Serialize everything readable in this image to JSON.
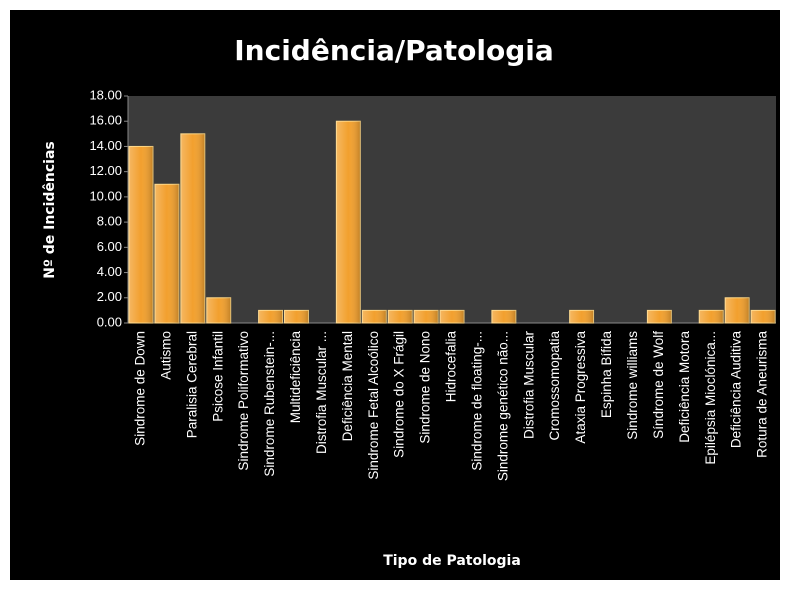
{
  "chart_data": {
    "type": "bar",
    "title": "Incidência/Patologia",
    "xlabel": "Tipo de Patologia",
    "ylabel": "Nº de Incidências",
    "categories": [
      "Sindrome de Down",
      "Autismo",
      "Paralisia Cerebral",
      "Psicose Infantil",
      "Sindrome Poliformativo",
      "Sindrome Rubenstein-...",
      "Multideficiência",
      "Distrofia Muscular ...",
      "Deficiência Mental",
      "Sindrome Fetal Alcoólico",
      "Sindrome do X Frágil",
      "Sindrome de Nono",
      "Hidrocefalia",
      "Sindrome de floating-...",
      "Sindrome genético não...",
      "Distrofia Muscular",
      "Cromossomopatia",
      "Ataxia Progressiva",
      "Espinha Bífida",
      "Sindrome williams",
      "Síndrome de Wolf",
      "Deficiência Motora",
      "Epilépsia Mioclónica...",
      "Deficiência Auditiva",
      "Rotura de Aneurisma"
    ],
    "values": [
      14,
      11,
      15,
      2,
      0,
      1,
      1,
      0,
      16,
      1,
      1,
      1,
      1,
      0,
      1,
      0,
      0,
      1,
      0,
      0,
      1,
      0,
      1,
      2,
      1
    ],
    "color": "#f2a02e",
    "ylim": [
      0,
      18
    ],
    "yticks": [
      {
        "value": 0,
        "label": "0.00"
      },
      {
        "value": 2,
        "label": "2.00"
      },
      {
        "value": 4,
        "label": "4.00"
      },
      {
        "value": 6,
        "label": "6.00"
      },
      {
        "value": 8,
        "label": "8.00"
      },
      {
        "value": 10,
        "label": "10.00"
      },
      {
        "value": 12,
        "label": "12.00"
      },
      {
        "value": 14,
        "label": "14.00"
      },
      {
        "value": 16,
        "label": "16.00"
      },
      {
        "value": 18,
        "label": "18.00"
      }
    ],
    "grid": false
  }
}
